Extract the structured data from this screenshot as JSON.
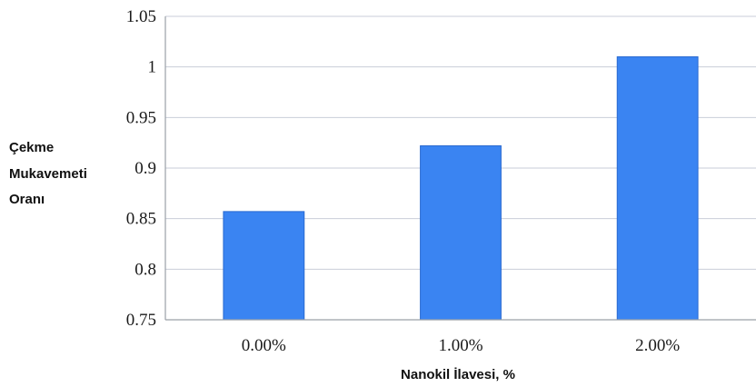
{
  "chart_data": {
    "type": "bar",
    "categories": [
      "0.00%",
      "1.00%",
      "2.00%"
    ],
    "values": [
      0.857,
      0.922,
      1.01
    ],
    "ylim": [
      0.75,
      1.05
    ],
    "yticks": [
      0.75,
      0.8,
      0.85,
      0.9,
      0.95,
      1,
      1.05
    ],
    "ytick_labels": [
      "0.75",
      "0.8",
      "0.85",
      "0.9",
      "0.95",
      "1",
      "1.05"
    ],
    "xlabel": "Nanokil İlavesi, %",
    "ylabel_lines": [
      "Çekme",
      "Mukavemeti",
      "Oranı"
    ],
    "grid": true,
    "legend": "none",
    "colors": {
      "bar": "#3a84f2",
      "bar_edge": "#2a6ad0",
      "grid": "#c9ced8",
      "axis": "#9aa0a8"
    }
  }
}
